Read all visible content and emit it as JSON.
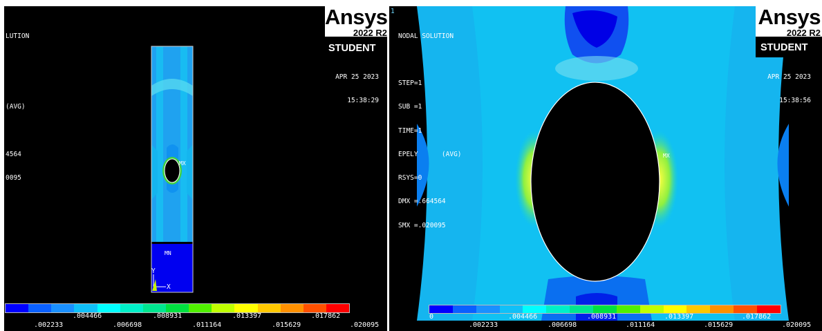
{
  "left": {
    "header_lines": [
      "LUTION",
      "",
      "",
      "(AVG)",
      "",
      "4564",
      "0095"
    ],
    "date": "APR 25 2023",
    "time": "15:38:29",
    "mx_label": "MX",
    "mn_label": "MN",
    "axis_y": "Y",
    "axis_x": "X",
    "legend_top": [
      ".004466",
      ".008931",
      ".013397",
      ".017862"
    ],
    "legend_bottom": [
      ".002233",
      ".006698",
      ".011164",
      ".015629",
      ".020095"
    ]
  },
  "right": {
    "window_number": "1",
    "header_lines": [
      "NODAL SOLUTION",
      "",
      "STEP=1",
      "SUB =1",
      "TIME=1",
      "EPELY      (AVG)",
      "RSYS=0",
      "DMX =.664564",
      "SMX =.020095"
    ],
    "date": "APR 25 2023",
    "time": "15:38:56",
    "mx_label": "MX",
    "legend_top": [
      "0",
      ".004466",
      ".008931",
      ".013397",
      ".017862"
    ],
    "legend_bottom": [
      ".002233",
      ".006698",
      ".011164",
      ".015629",
      ".020095"
    ]
  },
  "branding": {
    "name": "Ansys",
    "version": "2022 R2",
    "edition": "STUDENT"
  },
  "legend_colors": [
    "#0000ff",
    "#0a60ff",
    "#1a90ff",
    "#10c0f8",
    "#00ffff",
    "#00f0c8",
    "#00e690",
    "#00e040",
    "#50f000",
    "#c0ff00",
    "#ffff00",
    "#ffc800",
    "#ff9000",
    "#ff5000",
    "#ff0000"
  ]
}
